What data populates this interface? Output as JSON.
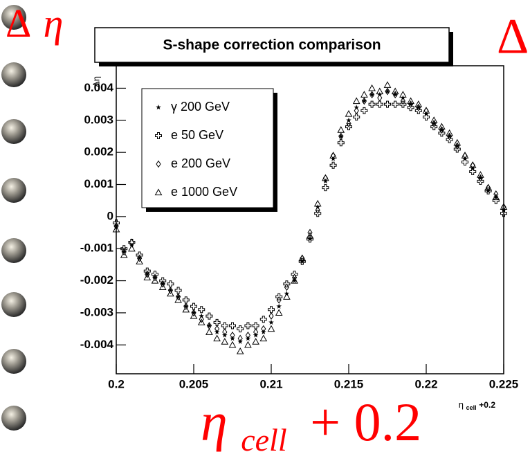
{
  "chart_data": {
    "type": "scatter",
    "title": "S-shape correction comparison",
    "y_label": "Δη",
    "x_label": {
      "main": "η",
      "sub": "cell",
      "tail": "+0.2"
    },
    "x": [
      0.2,
      0.2005,
      0.201,
      0.2015,
      0.202,
      0.2025,
      0.203,
      0.2035,
      0.204,
      0.2045,
      0.205,
      0.2055,
      0.206,
      0.2065,
      0.207,
      0.2075,
      0.208,
      0.2085,
      0.209,
      0.2095,
      0.21,
      0.2105,
      0.211,
      0.2115,
      0.212,
      0.2125,
      0.213,
      0.2135,
      0.214,
      0.2145,
      0.215,
      0.2155,
      0.216,
      0.2165,
      0.217,
      0.2175,
      0.218,
      0.2185,
      0.219,
      0.2195,
      0.22,
      0.2205,
      0.221,
      0.2215,
      0.222,
      0.2225,
      0.223,
      0.2235,
      0.224,
      0.2245,
      0.225
    ],
    "series": [
      {
        "name": "γ 200 GeV",
        "marker": "star",
        "color": "#000000",
        "values": [
          -0.0003,
          -0.0011,
          -0.0009,
          -0.0013,
          -0.0018,
          -0.0019,
          -0.0021,
          -0.0023,
          -0.0025,
          -0.0028,
          -0.003,
          -0.0031,
          -0.0034,
          -0.0036,
          -0.0037,
          -0.0038,
          -0.0039,
          -0.0038,
          -0.0037,
          -0.0036,
          -0.0033,
          -0.0028,
          -0.0024,
          -0.002,
          -0.0014,
          -0.0007,
          0.0003,
          0.0011,
          0.0018,
          0.0025,
          0.003,
          0.0034,
          0.0036,
          0.0038,
          0.0038,
          0.0039,
          0.0038,
          0.0037,
          0.0035,
          0.0034,
          0.0032,
          0.0029,
          0.0027,
          0.0025,
          0.0022,
          0.0018,
          0.0015,
          0.0012,
          0.0008,
          0.0006,
          0.0002
        ]
      },
      {
        "name": "e 50 GeV",
        "marker": "cross",
        "color": "#000000",
        "values": [
          -0.0002,
          -0.001,
          -0.0008,
          -0.0012,
          -0.0017,
          -0.0018,
          -0.002,
          -0.0021,
          -0.0023,
          -0.0026,
          -0.0028,
          -0.0029,
          -0.0031,
          -0.0033,
          -0.0034,
          -0.0034,
          -0.0035,
          -0.0034,
          -0.0034,
          -0.0032,
          -0.0029,
          -0.0025,
          -0.0021,
          -0.0018,
          -0.0014,
          -0.0007,
          0.0001,
          0.0009,
          0.0016,
          0.0023,
          0.0028,
          0.0031,
          0.0033,
          0.0035,
          0.0035,
          0.0035,
          0.0035,
          0.0035,
          0.0034,
          0.0033,
          0.0031,
          0.0028,
          0.0026,
          0.0024,
          0.0021,
          0.0017,
          0.0014,
          0.0011,
          0.0008,
          0.0005,
          0.0001
        ]
      },
      {
        "name": "e 200 GeV",
        "marker": "diamond",
        "color": "#000000",
        "values": [
          -0.0003,
          -0.0011,
          -0.0008,
          -0.0013,
          -0.0018,
          -0.0019,
          -0.0021,
          -0.0023,
          -0.0025,
          -0.0028,
          -0.003,
          -0.0032,
          -0.0034,
          -0.0035,
          -0.0036,
          -0.0037,
          -0.0038,
          -0.0037,
          -0.0036,
          -0.0035,
          -0.0031,
          -0.0026,
          -0.0022,
          -0.0019,
          -0.0013,
          -0.0005,
          0.0002,
          0.0012,
          0.0019,
          0.0025,
          0.0029,
          0.0033,
          0.0036,
          0.0038,
          0.0037,
          0.0039,
          0.0038,
          0.0036,
          0.0035,
          0.0034,
          0.0033,
          0.0029,
          0.0027,
          0.0025,
          0.0022,
          0.0019,
          0.0016,
          0.0012,
          0.0009,
          0.0007,
          0.0003
        ]
      },
      {
        "name": "e 1000 GeV",
        "marker": "triangle",
        "color": "#000000",
        "values": [
          -0.0004,
          -0.0012,
          -0.001,
          -0.0014,
          -0.0019,
          -0.002,
          -0.0022,
          -0.0024,
          -0.0026,
          -0.0029,
          -0.0031,
          -0.0033,
          -0.0036,
          -0.0038,
          -0.0039,
          -0.004,
          -0.0042,
          -0.004,
          -0.0039,
          -0.0038,
          -0.0035,
          -0.003,
          -0.0025,
          -0.002,
          -0.0013,
          -0.0006,
          0.0004,
          0.0012,
          0.0019,
          0.0027,
          0.0032,
          0.0036,
          0.0038,
          0.004,
          0.0039,
          0.0041,
          0.0039,
          0.0038,
          0.0036,
          0.0035,
          0.0033,
          0.003,
          0.0028,
          0.0026,
          0.0023,
          0.0019,
          0.0016,
          0.0013,
          0.0009,
          0.0006,
          0.0003
        ]
      }
    ],
    "xlim": [
      0.2,
      0.225
    ],
    "xticks": [
      0.2,
      0.205,
      0.21,
      0.215,
      0.22,
      0.225
    ],
    "ylim": [
      -0.0049,
      0.0047
    ],
    "yticks": [
      -0.004,
      -0.003,
      -0.002,
      -0.001,
      0,
      0.001,
      0.002,
      0.003,
      0.004
    ],
    "legend": "top-left",
    "grid": false
  },
  "overlay": {
    "top_left": {
      "delta": "Δ",
      "eta": "η"
    },
    "top_right": "Δ",
    "bottom": {
      "main": "η",
      "sub": "cell",
      "tail": "+ 0.2"
    }
  }
}
